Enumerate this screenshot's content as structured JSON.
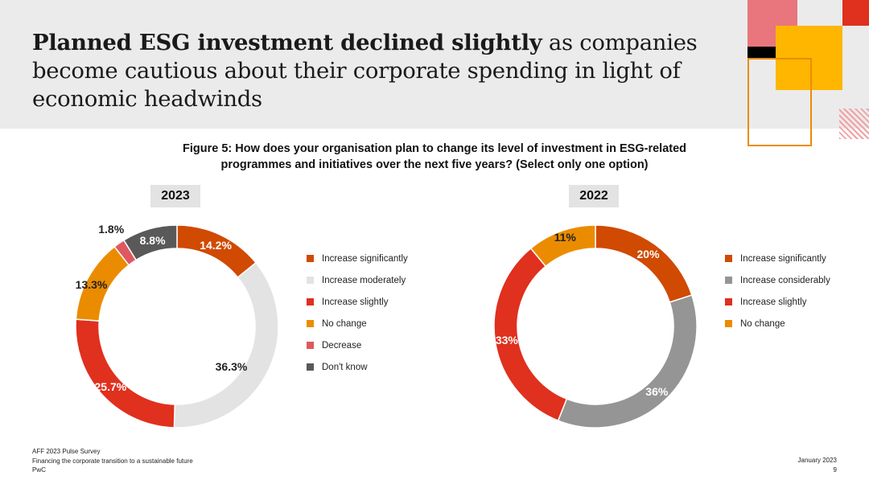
{
  "header": {
    "title_bold": "Planned ESG investment declined slightly",
    "title_rest": " as companies become cautious about their corporate spending in light of economic headwinds"
  },
  "figure": {
    "caption_line1": "Figure 5: How does your organisation plan to change its level of investment in ESG-related",
    "caption_line2": "programmes and initiatives over the next five years? (Select only one option)"
  },
  "chart_data": [
    {
      "type": "pie",
      "title": "2023",
      "categories": [
        "Increase significantly",
        "Increase moderately",
        "Increase slightly",
        "No change",
        "Decrease",
        "Don't know"
      ],
      "values": [
        14.2,
        36.3,
        25.7,
        13.3,
        1.8,
        8.8
      ],
      "labels": [
        "14.2%",
        "36.3%",
        "25.7%",
        "13.3%",
        "1.8%",
        "8.8%"
      ],
      "colors": [
        "#d04a02",
        "#e3e3e3",
        "#e0301e",
        "#eb8c00",
        "#e0585f",
        "#595959"
      ],
      "legend_position": "right"
    },
    {
      "type": "pie",
      "title": "2022",
      "categories": [
        "Increase significantly",
        "Increase considerably",
        "Increase slightly",
        "No change"
      ],
      "values": [
        20,
        36,
        33,
        11
      ],
      "labels": [
        "20%",
        "36%",
        "33%",
        "11%"
      ],
      "colors": [
        "#d04a02",
        "#959595",
        "#e0301e",
        "#eb8c00"
      ],
      "legend_position": "right"
    }
  ],
  "footer": {
    "line1": "AFF 2023 Pulse Survey",
    "line2": "Financing the corporate transition to a sustainable future",
    "line3": "PwC",
    "date": "January 2023",
    "page": "9"
  }
}
